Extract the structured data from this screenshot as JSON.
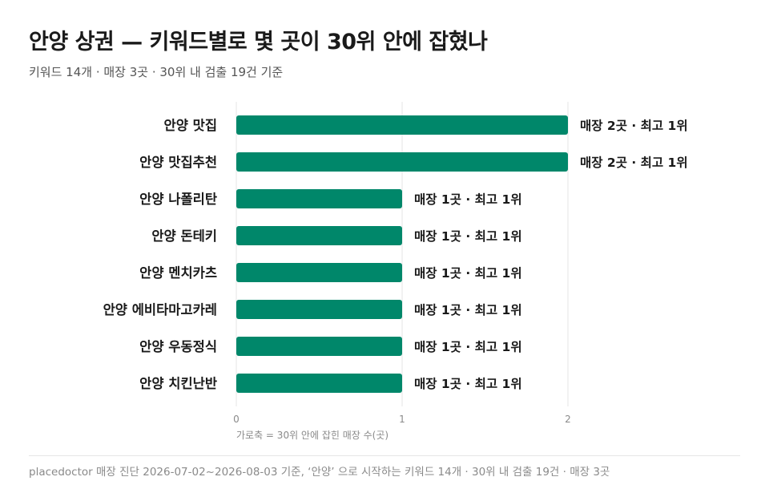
{
  "title": "안양 상권 — 키워드별로 몇 곳이 30위 안에 잡혔나",
  "subtitle": "키워드 14개 · 매장 3곳 · 30위 내 검출 19건 기준",
  "footer": "placedoctor 매장 진단 2026-07-02~2026-08-03 기준, ‘안양’ 으로 시작하는 키워드 14개 · 30위 내 검출 19건 · 매장 3곳",
  "colors": {
    "bar": "#00876a",
    "grid": "#e6e6e6",
    "axis_text": "#8a8a8a"
  },
  "chart_data": {
    "type": "bar",
    "orientation": "horizontal",
    "categories": [
      "안양 맛집",
      "안양 맛집추천",
      "안양 나폴리탄",
      "안양 돈테키",
      "안양 멘치카츠",
      "안양 에비타마고카레",
      "안양 우동정식",
      "안양 치킨난반"
    ],
    "values": [
      2,
      2,
      1,
      1,
      1,
      1,
      1,
      1
    ],
    "labels": [
      "매장 2곳 · 최고 1위",
      "매장 2곳 · 최고 1위",
      "매장 1곳 · 최고 1위",
      "매장 1곳 · 최고 1위",
      "매장 1곳 · 최고 1위",
      "매장 1곳 · 최고 1위",
      "매장 1곳 · 최고 1위",
      "매장 1곳 · 최고 1위"
    ],
    "xlim": [
      0,
      2
    ],
    "xticks": [
      "0",
      "1",
      "2"
    ],
    "xlabel": "가로축 = 30위 안에 잡힌 매장 수(곳)",
    "grid": true,
    "legend": "none"
  }
}
